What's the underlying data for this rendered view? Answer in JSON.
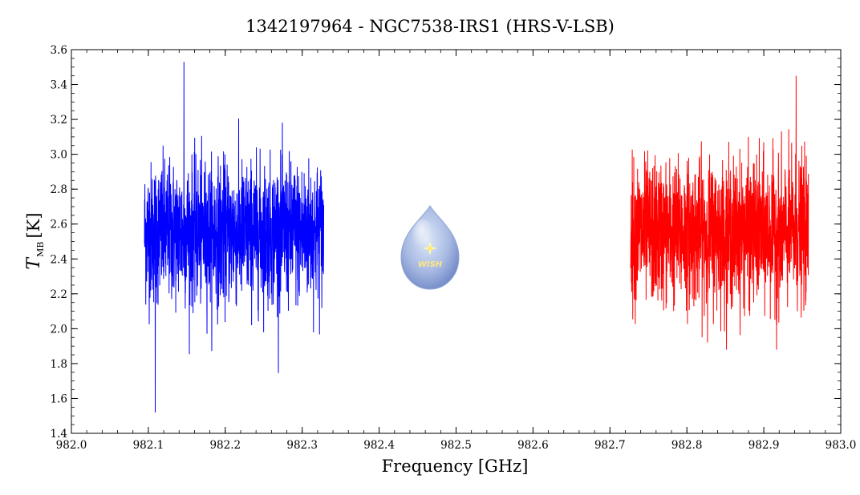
{
  "chart_data": {
    "type": "line",
    "title": "1342197964 - NGC7538-IRS1 (HRS-V-LSB)",
    "xlabel": "Frequency [GHz]",
    "ylabel_main": "T",
    "ylabel_sub": "MB",
    "ylabel_unit": "[K]",
    "xlim": [
      982.0,
      983.0
    ],
    "ylim": [
      1.4,
      3.6
    ],
    "xticks": [
      "982.0",
      "982.1",
      "982.2",
      "982.3",
      "982.4",
      "982.5",
      "982.6",
      "982.7",
      "982.8",
      "982.9",
      "983.0"
    ],
    "yticks": [
      "1.4",
      "1.6",
      "1.8",
      "2.0",
      "2.2",
      "2.4",
      "2.6",
      "2.8",
      "3.0",
      "3.2",
      "3.4",
      "3.6"
    ],
    "grid": false,
    "series": [
      {
        "color": "#0000ff",
        "x_start": 982.095,
        "x_end": 982.328,
        "mean": 2.55,
        "y_max": 3.53,
        "y_min": 1.52
      },
      {
        "color": "#ff0000",
        "x_start": 982.727,
        "x_end": 982.958,
        "mean": 2.55,
        "y_max": 3.45,
        "y_min": 1.88
      }
    ]
  },
  "logo": {
    "text": "WISH",
    "icon": "water-drop-star-icon"
  }
}
